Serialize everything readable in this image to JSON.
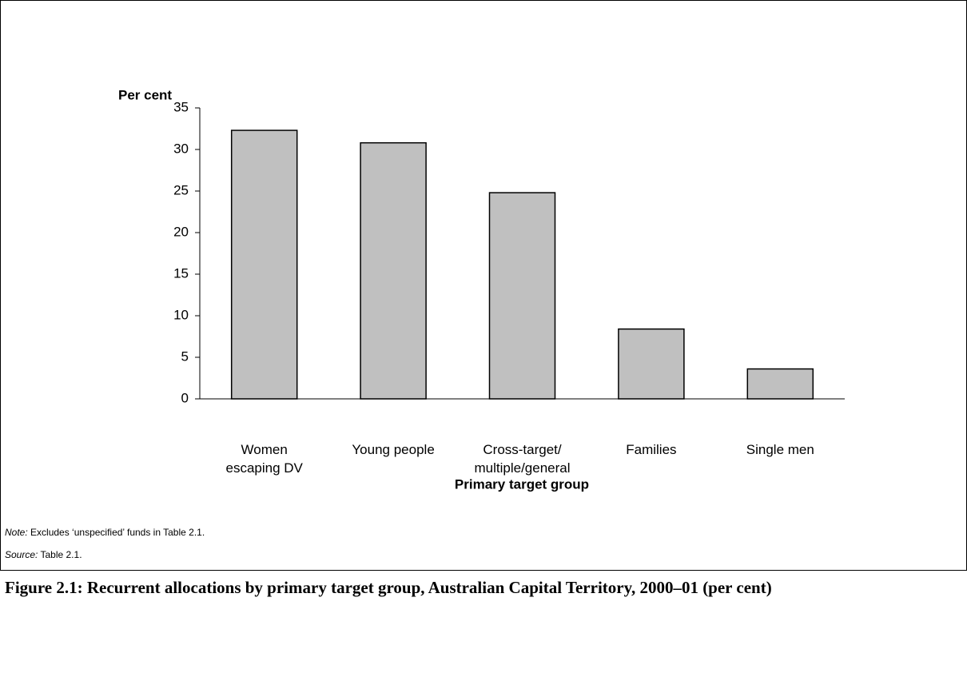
{
  "chart_data": {
    "type": "bar",
    "y_label": "Per cent",
    "x_label": "Primary target group",
    "categories": [
      "Women\nescaping DV",
      "Young people",
      "Cross-target/\nmultiple/general",
      "Families",
      "Single men"
    ],
    "values": [
      32.3,
      30.8,
      24.8,
      8.4,
      3.6
    ],
    "color": "#c0c0c0",
    "ylim": [
      0,
      35
    ],
    "yticks": [
      0,
      5,
      10,
      15,
      20,
      25,
      30,
      35
    ],
    "grid": false
  },
  "note_label": "Note:",
  "note": "Excludes ‘unspecified’ funds in Table 2.1.",
  "source_label": "Source:",
  "source": "Table 2.1.",
  "caption": "Figure 2.1: Recurrent allocations by primary target group, Australian Capital Territory, 2000–01 (per cent)"
}
